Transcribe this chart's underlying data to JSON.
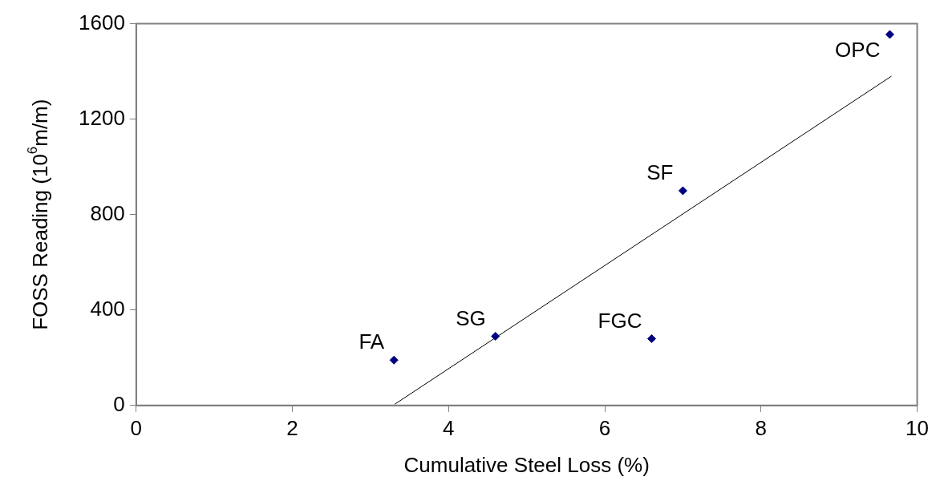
{
  "chart_data": {
    "type": "scatter",
    "xlabel": "Cumulative Steel Loss (%)",
    "ylabel": "FOSS Reading (10$^{6}$m/m)",
    "x": [
      3.3,
      4.6,
      6.6,
      7.0,
      9.65
    ],
    "series": [
      {
        "type": "scatter",
        "color": "#000080",
        "values": [
          190,
          290,
          280,
          900,
          1555
        ],
        "marker": "diamond"
      },
      {
        "type": "line",
        "color": "#000000",
        "x": [
          3.31,
          9.67
        ],
        "values": [
          5,
          1380
        ],
        "marker": "none",
        "line_style": "solid"
      }
    ],
    "annotations": [
      {
        "text": "FA",
        "x": 3.3,
        "y": 190
      },
      {
        "text": "SG",
        "x": 4.6,
        "y": 290
      },
      {
        "text": "FGC",
        "x": 6.6,
        "y": 280
      },
      {
        "text": "SF",
        "x": 7.0,
        "y": 900
      },
      {
        "text": "OPC",
        "x": 9.65,
        "y": 1555
      }
    ],
    "xlim": [
      0,
      10
    ],
    "xticks": [
      0,
      2,
      4,
      6,
      8,
      10
    ],
    "ylim": [
      0,
      1600
    ],
    "yticks": [
      0,
      400,
      800,
      1200,
      1600
    ],
    "grid": false,
    "legend": false
  }
}
